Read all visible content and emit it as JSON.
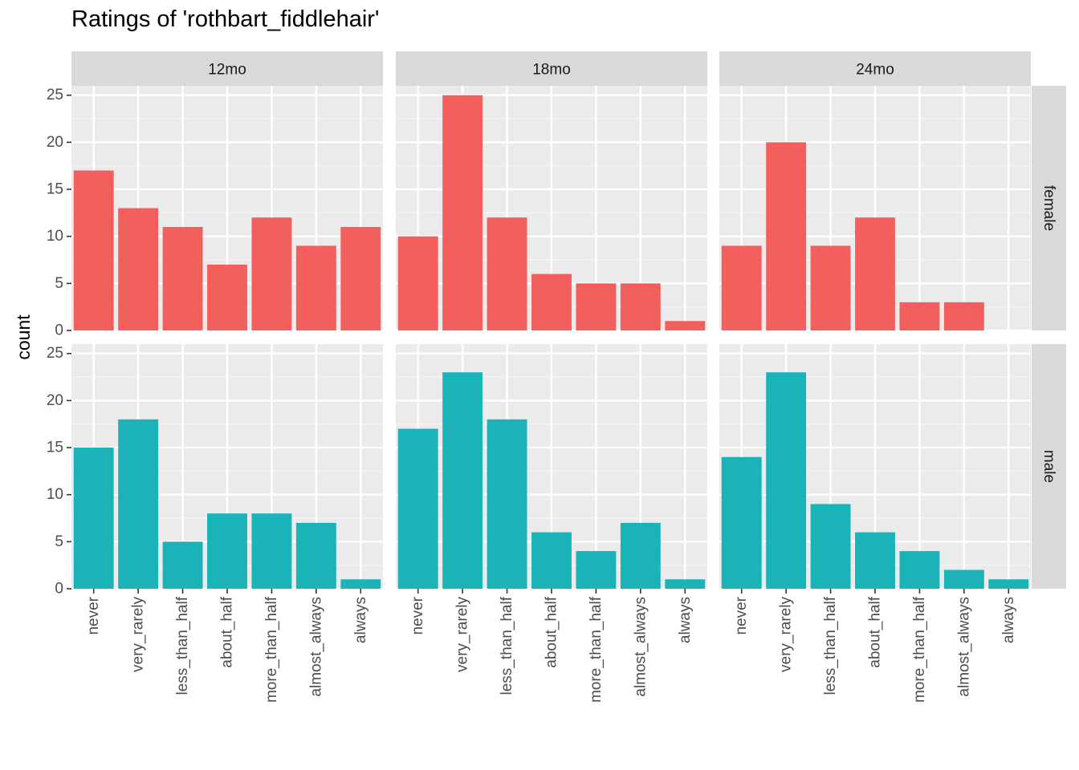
{
  "chart_data": {
    "type": "bar",
    "title": "Ratings of 'rothbart_fiddlehair'",
    "xlabel": "",
    "ylabel": "count",
    "ylim": [
      0,
      26
    ],
    "yticks": [
      0,
      5,
      10,
      15,
      20,
      25
    ],
    "grid": true,
    "legend": "none",
    "categories": [
      "never",
      "very_rarely",
      "less_than_half",
      "about_half",
      "more_than_half",
      "almost_always",
      "always"
    ],
    "facet_columns": [
      "12mo",
      "18mo",
      "24mo"
    ],
    "facet_rows": [
      "female",
      "male"
    ],
    "colors": {
      "female": "#F25F5C",
      "male": "#1AB3B8"
    },
    "panels": [
      {
        "row": "female",
        "column": "12mo",
        "values": [
          17,
          13,
          11,
          7,
          12,
          9,
          11
        ]
      },
      {
        "row": "female",
        "column": "18mo",
        "values": [
          10,
          25,
          12,
          6,
          5,
          5,
          1
        ]
      },
      {
        "row": "female",
        "column": "24mo",
        "values": [
          9,
          20,
          9,
          12,
          3,
          3,
          0
        ]
      },
      {
        "row": "male",
        "column": "12mo",
        "values": [
          15,
          18,
          5,
          8,
          8,
          7,
          1
        ]
      },
      {
        "row": "male",
        "column": "18mo",
        "values": [
          17,
          23,
          18,
          6,
          4,
          7,
          1
        ]
      },
      {
        "row": "male",
        "column": "24mo",
        "values": [
          14,
          23,
          9,
          6,
          4,
          2,
          1
        ]
      }
    ]
  }
}
